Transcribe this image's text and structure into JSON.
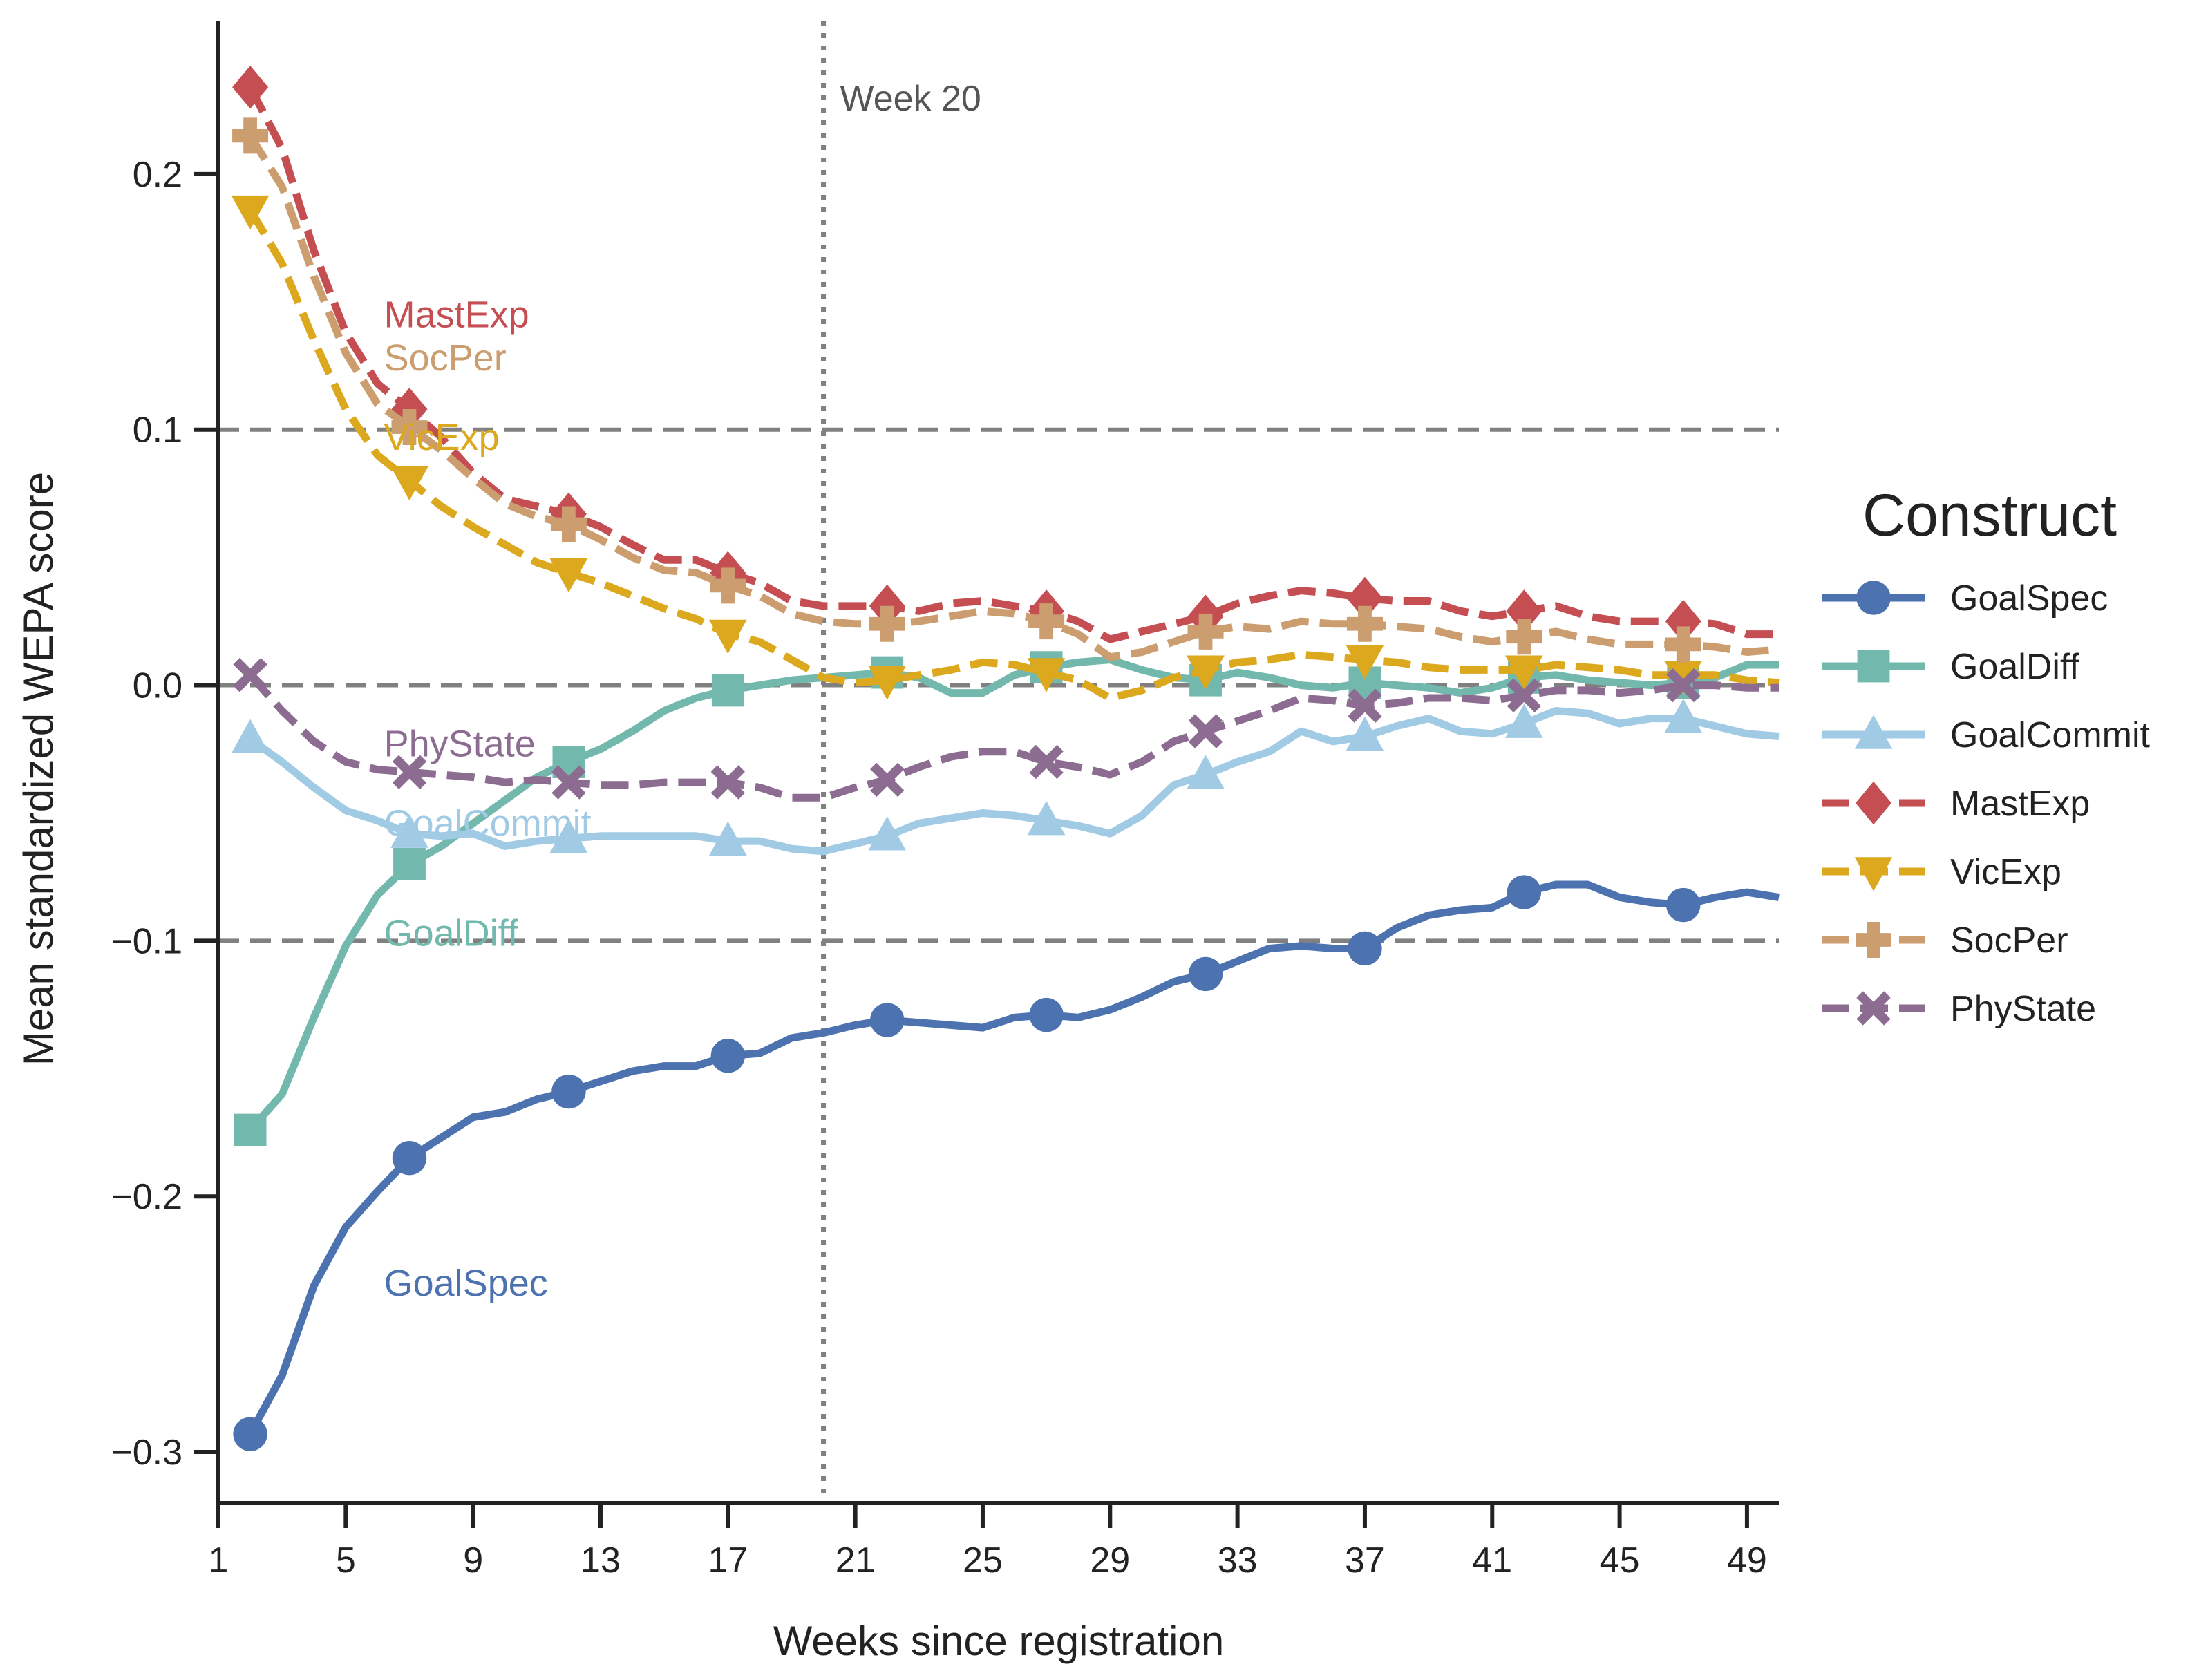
{
  "chart_data": {
    "type": "line",
    "title": "",
    "xlabel": "Weeks since registration",
    "ylabel": "Mean standardized WEPA score",
    "xlim": [
      1,
      50
    ],
    "ylim": [
      -0.32,
      0.26
    ],
    "xticks": [
      1,
      5,
      9,
      13,
      17,
      21,
      25,
      29,
      33,
      37,
      41,
      45,
      49
    ],
    "yticks": [
      -0.3,
      -0.2,
      -0.1,
      0.0,
      0.1,
      0.2
    ],
    "ytick_labels": [
      "−0.3",
      "−0.2",
      "−0.1",
      "0.0",
      "0.1",
      "0.2"
    ],
    "hlines": [
      0.1,
      0.0,
      -0.1
    ],
    "vline": {
      "x": 20,
      "label": "Week 20"
    },
    "legend": {
      "title": "Construct",
      "placement": "right"
    },
    "grid": false,
    "x": [
      2,
      3,
      4,
      5,
      6,
      7,
      8,
      9,
      10,
      11,
      12,
      13,
      14,
      15,
      16,
      17,
      18,
      19,
      20,
      21,
      22,
      23,
      24,
      25,
      26,
      27,
      28,
      29,
      30,
      31,
      32,
      33,
      34,
      35,
      36,
      37,
      38,
      39,
      40,
      41,
      42,
      43,
      44,
      45,
      46,
      47,
      48,
      49,
      50
    ],
    "series": [
      {
        "name": "GoalSpec",
        "color": "#4c72b0",
        "dash": false,
        "marker": "circle",
        "values": [
          -0.293,
          -0.27,
          -0.235,
          -0.212,
          -0.198,
          -0.185,
          -0.177,
          -0.169,
          -0.167,
          -0.162,
          -0.159,
          -0.155,
          -0.151,
          -0.149,
          -0.149,
          -0.145,
          -0.144,
          -0.138,
          -0.136,
          -0.133,
          -0.131,
          -0.132,
          -0.133,
          -0.134,
          -0.13,
          -0.129,
          -0.13,
          -0.127,
          -0.122,
          -0.116,
          -0.113,
          -0.108,
          -0.103,
          -0.102,
          -0.103,
          -0.103,
          -0.095,
          -0.09,
          -0.088,
          -0.087,
          -0.081,
          -0.078,
          -0.078,
          -0.083,
          -0.085,
          -0.086,
          -0.083,
          -0.081,
          -0.083
        ]
      },
      {
        "name": "GoalDiff",
        "color": "#72b8ad",
        "dash": false,
        "marker": "square",
        "values": [
          -0.174,
          -0.16,
          -0.13,
          -0.102,
          -0.082,
          -0.07,
          -0.063,
          -0.054,
          -0.045,
          -0.036,
          -0.03,
          -0.025,
          -0.018,
          -0.01,
          -0.005,
          -0.002,
          0.0,
          0.002,
          0.003,
          0.004,
          0.005,
          0.003,
          -0.003,
          -0.003,
          0.004,
          0.007,
          0.009,
          0.01,
          0.006,
          0.003,
          0.002,
          0.005,
          0.003,
          0.0,
          -0.001,
          0.001,
          0.0,
          -0.001,
          -0.003,
          -0.001,
          0.003,
          0.004,
          0.002,
          0.001,
          0.0,
          0.001,
          0.003,
          0.008,
          0.008
        ]
      },
      {
        "name": "GoalCommit",
        "color": "#a1cbe5",
        "dash": false,
        "marker": "triangle-up",
        "values": [
          -0.021,
          -0.03,
          -0.04,
          -0.049,
          -0.053,
          -0.058,
          -0.059,
          -0.058,
          -0.063,
          -0.061,
          -0.06,
          -0.059,
          -0.059,
          -0.059,
          -0.059,
          -0.061,
          -0.061,
          -0.064,
          -0.065,
          -0.062,
          -0.059,
          -0.054,
          -0.052,
          -0.05,
          -0.051,
          -0.053,
          -0.055,
          -0.058,
          -0.051,
          -0.039,
          -0.035,
          -0.03,
          -0.026,
          -0.018,
          -0.022,
          -0.02,
          -0.016,
          -0.013,
          -0.018,
          -0.019,
          -0.015,
          -0.01,
          -0.011,
          -0.015,
          -0.013,
          -0.013,
          -0.016,
          -0.019,
          -0.02
        ]
      },
      {
        "name": "MastExp",
        "color": "#c44e52",
        "dash": true,
        "marker": "diamond",
        "values": [
          0.234,
          0.21,
          0.17,
          0.138,
          0.118,
          0.108,
          0.097,
          0.083,
          0.073,
          0.07,
          0.067,
          0.062,
          0.055,
          0.049,
          0.049,
          0.044,
          0.04,
          0.033,
          0.031,
          0.031,
          0.031,
          0.029,
          0.032,
          0.033,
          0.031,
          0.029,
          0.025,
          0.018,
          0.021,
          0.024,
          0.027,
          0.032,
          0.035,
          0.037,
          0.036,
          0.034,
          0.033,
          0.033,
          0.029,
          0.027,
          0.029,
          0.031,
          0.027,
          0.025,
          0.025,
          0.025,
          0.024,
          0.02,
          0.02
        ]
      },
      {
        "name": "VicExp",
        "color": "#dba81e",
        "dash": true,
        "marker": "triangle-down",
        "values": [
          0.186,
          0.165,
          0.135,
          0.108,
          0.09,
          0.08,
          0.07,
          0.062,
          0.055,
          0.048,
          0.044,
          0.04,
          0.035,
          0.03,
          0.026,
          0.02,
          0.017,
          0.01,
          0.003,
          0.001,
          0.002,
          0.004,
          0.006,
          0.009,
          0.008,
          0.005,
          0.002,
          -0.005,
          -0.002,
          0.003,
          0.006,
          0.009,
          0.01,
          0.012,
          0.011,
          0.01,
          0.009,
          0.007,
          0.006,
          0.006,
          0.006,
          0.008,
          0.007,
          0.006,
          0.004,
          0.004,
          0.004,
          0.002,
          0.001
        ]
      },
      {
        "name": "SocPer",
        "color": "#cc9d6e",
        "dash": true,
        "marker": "plus",
        "values": [
          0.215,
          0.195,
          0.16,
          0.13,
          0.11,
          0.101,
          0.092,
          0.081,
          0.071,
          0.066,
          0.063,
          0.057,
          0.05,
          0.045,
          0.044,
          0.039,
          0.035,
          0.028,
          0.025,
          0.024,
          0.024,
          0.025,
          0.027,
          0.029,
          0.028,
          0.025,
          0.02,
          0.011,
          0.013,
          0.017,
          0.021,
          0.023,
          0.022,
          0.025,
          0.024,
          0.024,
          0.023,
          0.022,
          0.019,
          0.017,
          0.019,
          0.021,
          0.018,
          0.016,
          0.016,
          0.016,
          0.015,
          0.013,
          0.014
        ]
      },
      {
        "name": "PhyState",
        "color": "#8c6d91",
        "dash": true,
        "marker": "x",
        "values": [
          0.004,
          -0.01,
          -0.022,
          -0.03,
          -0.033,
          -0.034,
          -0.035,
          -0.036,
          -0.038,
          -0.037,
          -0.038,
          -0.039,
          -0.039,
          -0.038,
          -0.038,
          -0.038,
          -0.04,
          -0.044,
          -0.044,
          -0.04,
          -0.037,
          -0.032,
          -0.028,
          -0.026,
          -0.026,
          -0.03,
          -0.032,
          -0.035,
          -0.03,
          -0.022,
          -0.018,
          -0.014,
          -0.01,
          -0.005,
          -0.006,
          -0.008,
          -0.007,
          -0.005,
          -0.005,
          -0.006,
          -0.004,
          -0.002,
          -0.002,
          -0.003,
          -0.002,
          0.0,
          0.0,
          -0.001,
          -0.001
        ]
      }
    ],
    "inline_labels": [
      {
        "series": "MastExp",
        "text": "MastExp",
        "x": 6.2,
        "y": 0.145
      },
      {
        "series": "SocPer",
        "text": "SocPer",
        "x": 6.2,
        "y": 0.128
      },
      {
        "series": "VicExp",
        "text": "VicExp",
        "x": 6.2,
        "y": 0.097
      },
      {
        "series": "PhyState",
        "text": "PhyState",
        "x": 6.2,
        "y": -0.023
      },
      {
        "series": "GoalCommit",
        "text": "GoalCommit",
        "x": 6.2,
        "y": -0.054
      },
      {
        "series": "GoalDiff",
        "text": "GoalDiff",
        "x": 6.2,
        "y": -0.097
      },
      {
        "series": "GoalSpec",
        "text": "GoalSpec",
        "x": 6.2,
        "y": -0.234
      }
    ]
  }
}
